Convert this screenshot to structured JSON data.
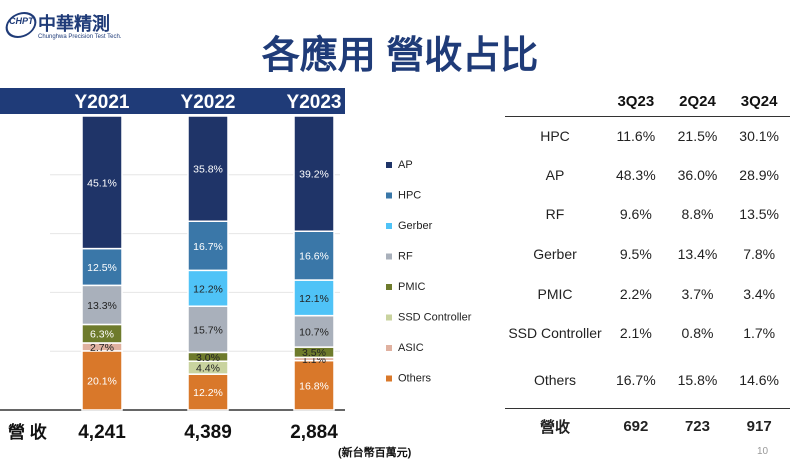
{
  "logo": {
    "mark": "CHPT",
    "name_cn": "中華精測",
    "name_en": "Chunghwa Precision Test Tech."
  },
  "title": "各應用 營收占比",
  "colors": {
    "AP": "#1f3468",
    "HPC": "#3a77a8",
    "Gerber": "#4fc3f7",
    "RF": "#a9b0bb",
    "PMIC": "#6e7b2c",
    "SSD Controller": "#c9d39f",
    "ASIC": "#e0b1a0",
    "Others": "#d9782a",
    "header": "#1f3b78"
  },
  "chart_data": {
    "type": "bar",
    "stacked": true,
    "normalized": true,
    "categories": [
      "Y2021",
      "Y2022",
      "Y2023"
    ],
    "series": [
      {
        "name": "AP",
        "values": [
          45.1,
          35.8,
          39.2
        ],
        "labels": [
          "45.1%",
          "35.8%",
          "39.2%"
        ]
      },
      {
        "name": "HPC",
        "values": [
          12.5,
          16.7,
          16.6
        ],
        "labels": [
          "12.5%",
          "16.7%",
          "16.6%"
        ]
      },
      {
        "name": "Gerber",
        "values": [
          0,
          12.2,
          12.1
        ],
        "labels": [
          "",
          "12.2%",
          "12.1%"
        ]
      },
      {
        "name": "RF",
        "values": [
          13.3,
          15.7,
          10.7
        ],
        "labels": [
          "13.3%",
          "15.7%",
          "10.7%"
        ]
      },
      {
        "name": "PMIC",
        "values": [
          6.3,
          3.0,
          3.5
        ],
        "labels": [
          "6.3%",
          "3.0%",
          "3.5%"
        ]
      },
      {
        "name": "SSD Controller",
        "values": [
          0,
          4.4,
          0
        ],
        "labels": [
          "",
          "4.4%",
          ""
        ]
      },
      {
        "name": "ASIC",
        "values": [
          2.7,
          0,
          1.1
        ],
        "labels": [
          "2.7%",
          "",
          "1.1%"
        ]
      },
      {
        "name": "Others",
        "values": [
          20.1,
          12.2,
          16.8
        ],
        "labels": [
          "20.1%",
          "12.2%",
          "16.8%"
        ]
      }
    ],
    "legend_order": [
      "AP",
      "HPC",
      "Gerber",
      "RF",
      "PMIC",
      "SSD Controller",
      "ASIC",
      "Others"
    ],
    "legend_position": "right",
    "revenue_label": "營 收",
    "revenue": [
      "4,241",
      "4,389",
      "2,884"
    ],
    "unit_note": "(新台幣百萬元)"
  },
  "table": {
    "headers": [
      "",
      "3Q23",
      "2Q24",
      "3Q24"
    ],
    "rows": [
      {
        "label": "HPC",
        "values": [
          "11.6%",
          "21.5%",
          "30.1%"
        ]
      },
      {
        "label": "AP",
        "values": [
          "48.3%",
          "36.0%",
          "28.9%"
        ]
      },
      {
        "label": "RF",
        "values": [
          "9.6%",
          "8.8%",
          "13.5%"
        ]
      },
      {
        "label": "Gerber",
        "values": [
          "9.5%",
          "13.4%",
          "7.8%"
        ]
      },
      {
        "label": "PMIC",
        "values": [
          "2.2%",
          "3.7%",
          "3.4%"
        ]
      },
      {
        "label": "SSD Controller",
        "values": [
          "2.1%",
          "0.8%",
          "1.7%"
        ]
      },
      {
        "label": "Others",
        "values": [
          "16.7%",
          "15.8%",
          "14.6%"
        ]
      }
    ],
    "total": {
      "label": "營收",
      "values": [
        "692",
        "723",
        "917"
      ]
    }
  },
  "page_number": "10"
}
